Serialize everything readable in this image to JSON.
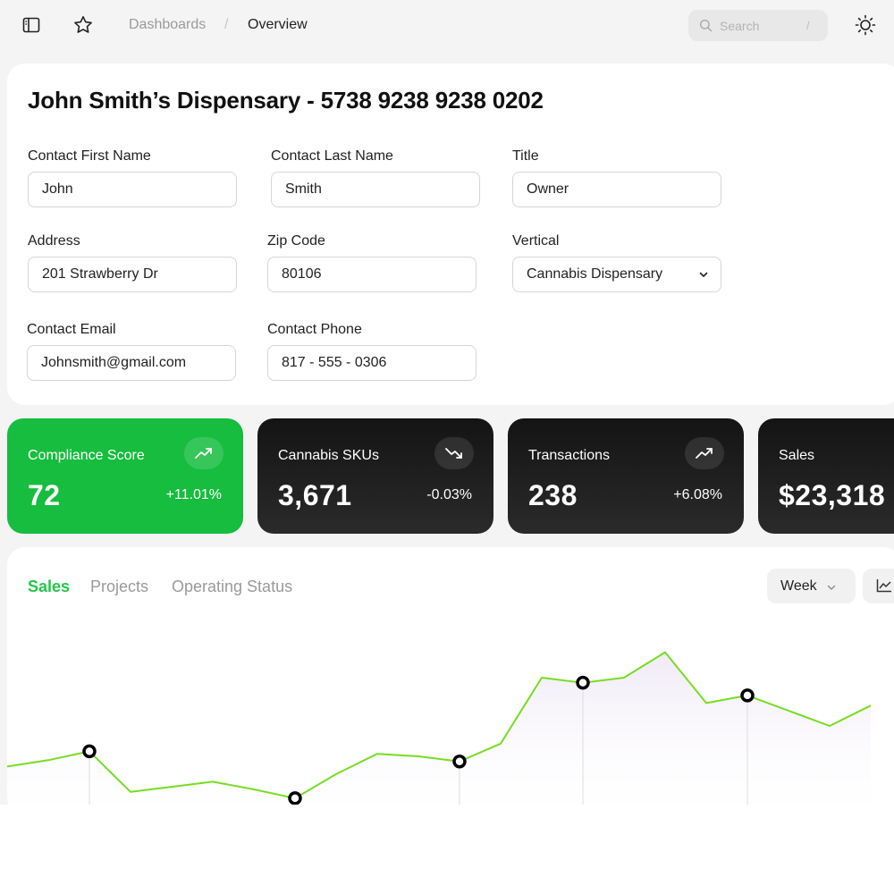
{
  "breadcrumb": {
    "parent": "Dashboards",
    "separator": "/",
    "current": "Overview"
  },
  "search": {
    "placeholder": "Search",
    "shortcut": "/"
  },
  "icons": {
    "sidebar_toggle": "sidebar-toggle-icon",
    "favorite": "star-icon",
    "search": "search-icon",
    "theme": "sun-icon"
  },
  "account": {
    "title": "John Smith’s Dispensary - 5738 9238 9238 0202",
    "fields": {
      "first_name": {
        "label": "Contact First Name",
        "value": "John"
      },
      "last_name": {
        "label": "Contact Last Name",
        "value": "Smith"
      },
      "title": {
        "label": "Title",
        "value": "Owner"
      },
      "address": {
        "label": "Address",
        "value": "201 Strawberry Dr"
      },
      "zip": {
        "label": "Zip Code",
        "value": "80106"
      },
      "vertical": {
        "label": "Vertical",
        "value": "Cannabis Dispensary"
      },
      "email": {
        "label": "Contact Email",
        "value": "Johnsmith@gmail.com"
      },
      "phone": {
        "label": "Contact Phone",
        "value": "817 - 555 - 0306"
      }
    }
  },
  "stats": [
    {
      "title": "Compliance Score",
      "value": "72",
      "change": "+11.01%",
      "trend": "up"
    },
    {
      "title": "Cannabis SKUs",
      "value": "3,671",
      "change": "-0.03%",
      "trend": "down"
    },
    {
      "title": "Transactions",
      "value": "238",
      "change": "+6.08%",
      "trend": "up"
    },
    {
      "title": "Sales",
      "value": "$23,318",
      "change": "",
      "trend": ""
    }
  ],
  "colors": {
    "accent": "#22c548",
    "compliance_card": "#16bd3e",
    "dark_card": "#1c1c1c",
    "line": "#77dd22",
    "area_fill": "#f3eff8"
  },
  "chart_panel": {
    "tabs": [
      "Sales",
      "Projects",
      "Operating Status"
    ],
    "active_tab": "Sales",
    "period": "Week",
    "chart_type_icon": "line-chart-icon"
  },
  "chart_data": {
    "type": "area",
    "title": "",
    "xlabel": "",
    "ylabel": "",
    "grid": false,
    "legend": "none",
    "x": [
      0,
      1,
      2,
      3,
      4,
      5,
      6,
      7,
      8,
      9,
      10,
      11,
      12,
      13,
      14,
      15,
      16,
      17,
      18,
      19,
      20,
      21
    ],
    "values": [
      30,
      35,
      42,
      10,
      14,
      18,
      12,
      5,
      24,
      40,
      38,
      34,
      48,
      100,
      96,
      100,
      120,
      80,
      86,
      74,
      62,
      78
    ],
    "highlighted_points": [
      2,
      7,
      11,
      14,
      18
    ],
    "ylim": [
      0,
      140
    ]
  }
}
